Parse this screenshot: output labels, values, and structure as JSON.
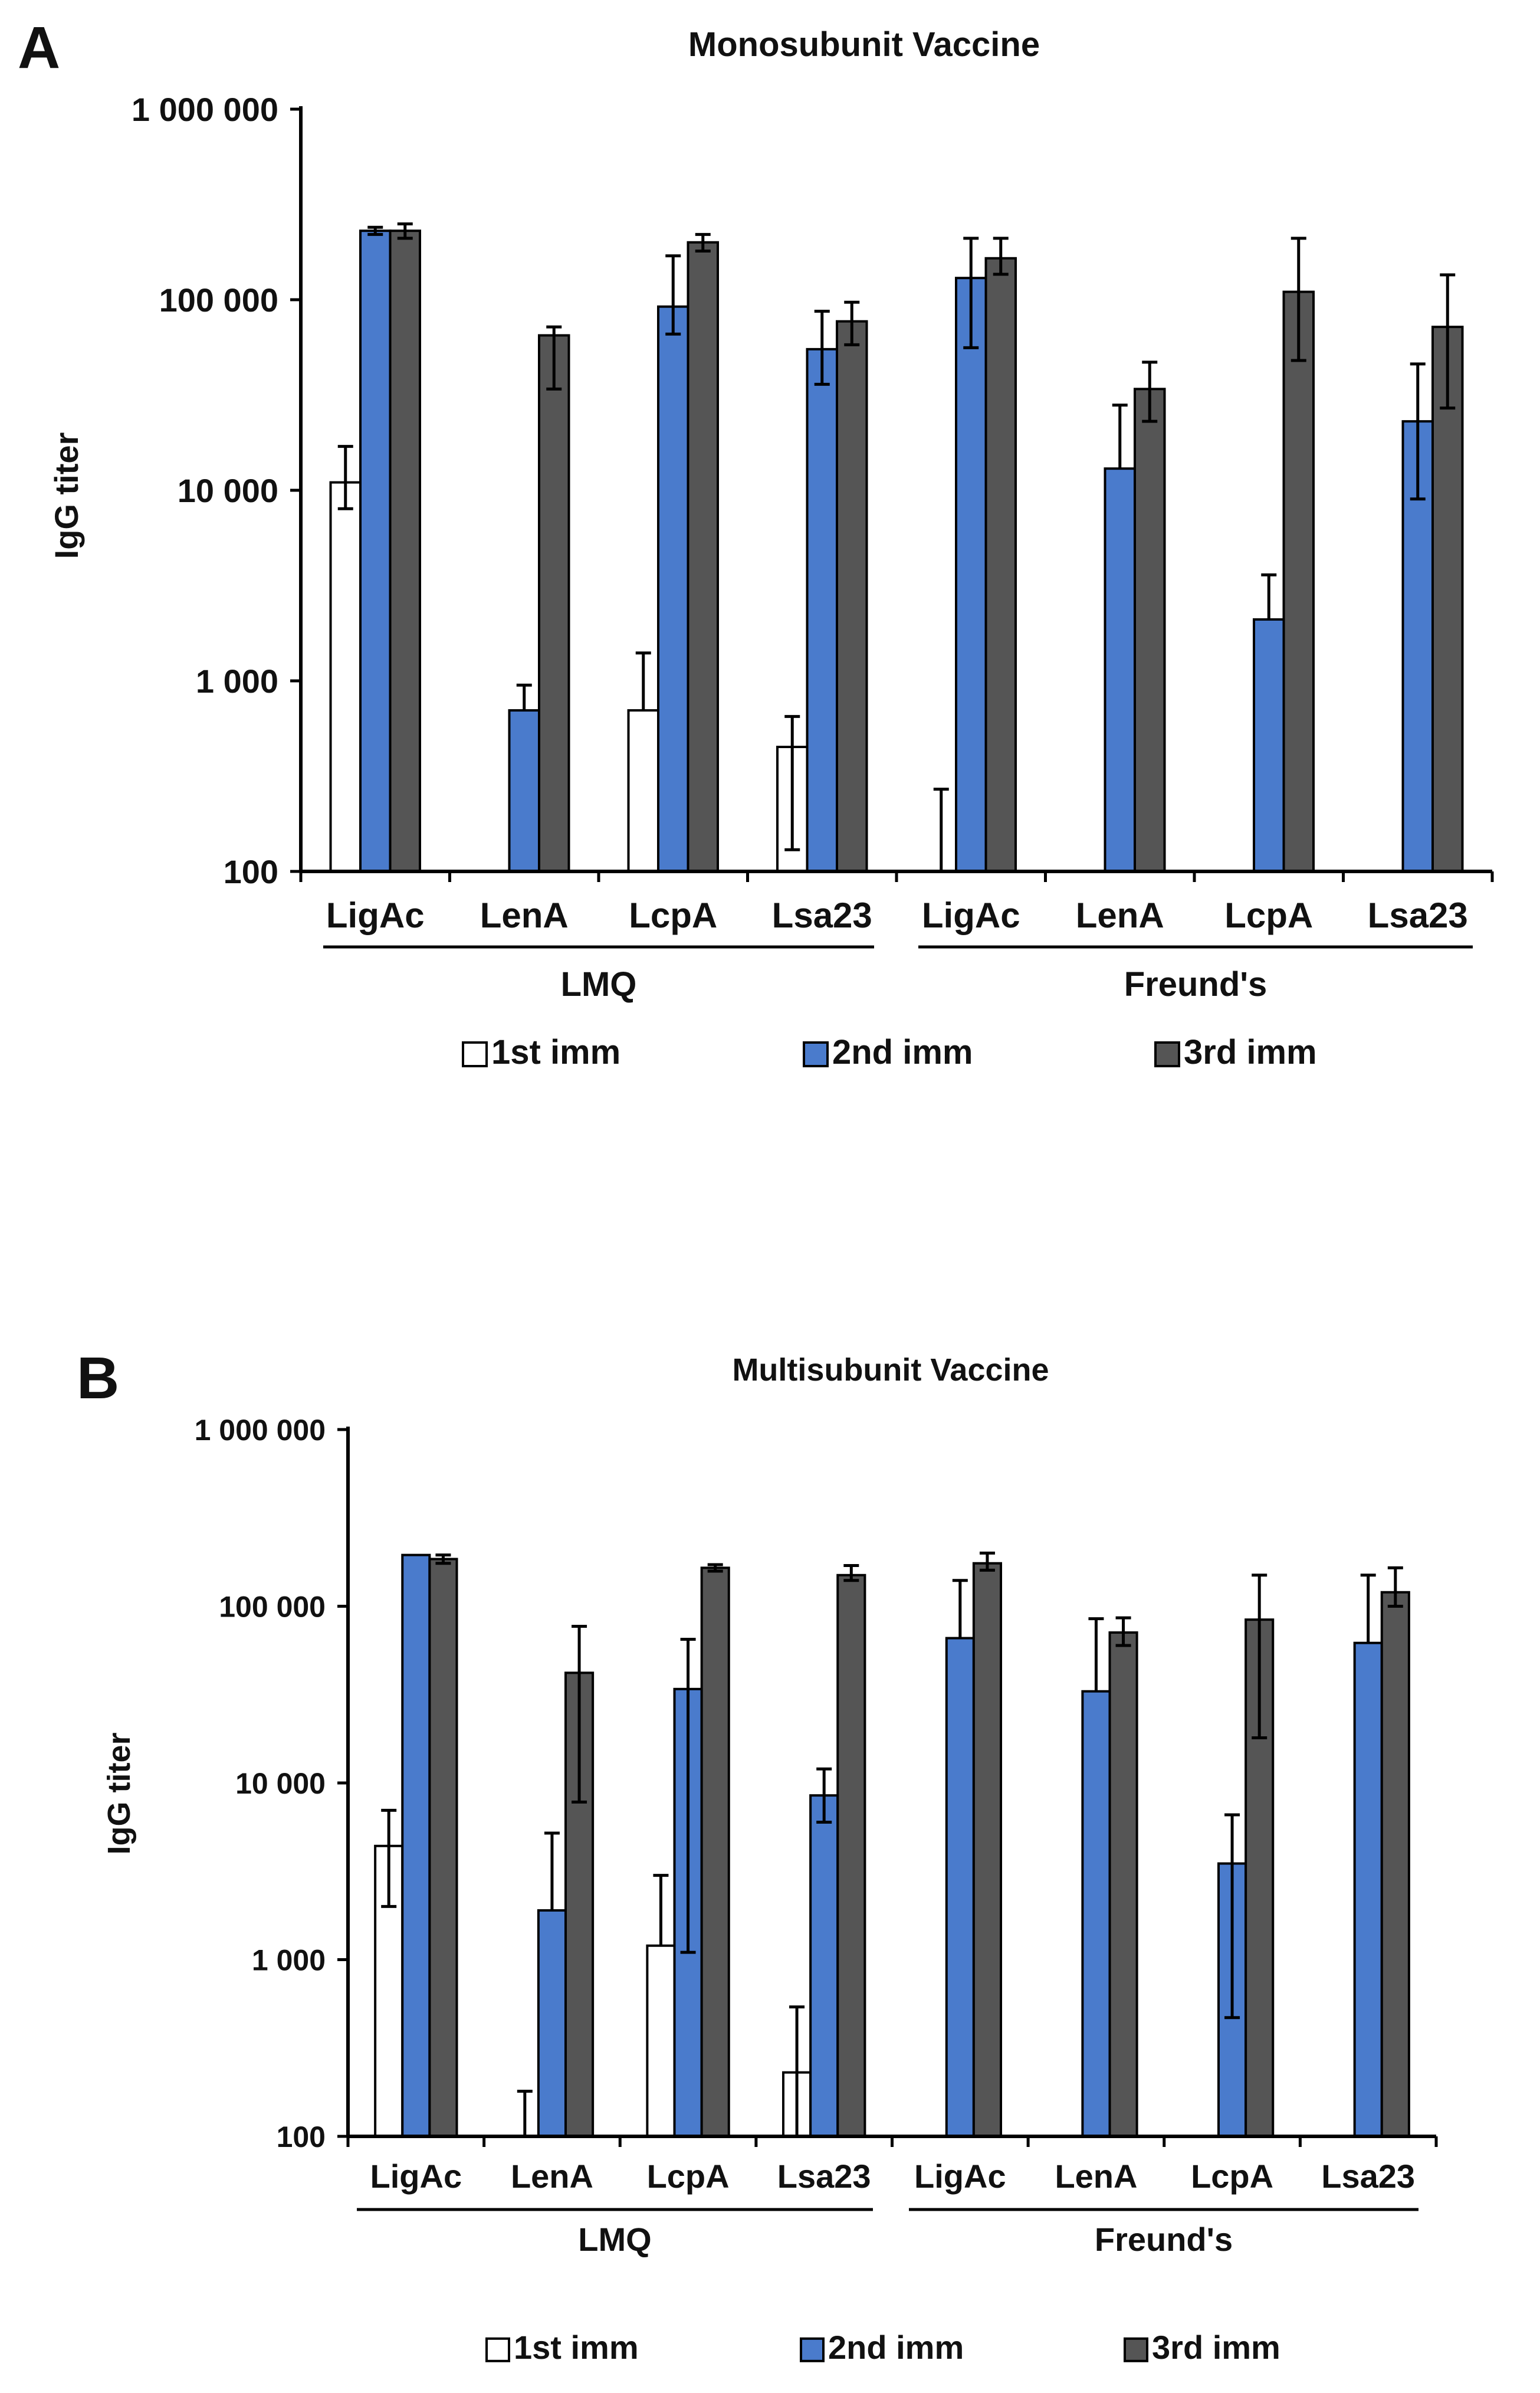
{
  "colors": {
    "first_imm": "#ffffff",
    "second_imm": "#4a7bcc",
    "third_imm": "#555555",
    "bar_stroke": "#000000",
    "text": "#111111"
  },
  "chart_data": [
    {
      "panel": "A",
      "type": "bar",
      "title": "Monosubunit Vaccine",
      "ylabel": "IgG titer",
      "xlabel": "",
      "yscale": "log",
      "ylim": [
        100,
        1000000
      ],
      "yticks": [
        100,
        1000,
        10000,
        100000,
        1000000
      ],
      "ytick_labels": [
        "100",
        "1 000",
        "10 000",
        "100 000",
        "1 000 000"
      ],
      "categories": [
        "LigAc",
        "LenA",
        "LcpA",
        "Lsa23",
        "LigAc",
        "LenA",
        "LcpA",
        "Lsa23"
      ],
      "groups": [
        {
          "label": "LMQ",
          "from": 0,
          "to": 3
        },
        {
          "label": "Freund's",
          "from": 4,
          "to": 7
        }
      ],
      "legend": [
        "1st imm",
        "2nd imm",
        "3rd imm"
      ],
      "series": [
        {
          "name": "1st imm",
          "values": [
            11000,
            null,
            700,
            450,
            100,
            null,
            null,
            null
          ],
          "err_low": [
            8000,
            null,
            null,
            130,
            null,
            null,
            null,
            null
          ],
          "err_high": [
            17000,
            null,
            1400,
            650,
            270,
            null,
            null,
            null
          ]
        },
        {
          "name": "2nd imm",
          "values": [
            230000,
            700,
            92000,
            55000,
            130000,
            13000,
            2100,
            23000
          ],
          "err_low": [
            220000,
            null,
            66000,
            36000,
            56000,
            null,
            null,
            9000
          ],
          "err_high": [
            240000,
            950,
            170000,
            87000,
            210000,
            28000,
            3600,
            46000
          ]
        },
        {
          "name": "3rd imm",
          "values": [
            230000,
            65000,
            200000,
            77000,
            165000,
            34000,
            110000,
            72000
          ],
          "err_low": [
            210000,
            34000,
            180000,
            58000,
            136000,
            23000,
            48000,
            27000
          ],
          "err_high": [
            250000,
            72000,
            220000,
            97000,
            210000,
            47000,
            210000,
            135000
          ]
        }
      ]
    },
    {
      "panel": "B",
      "type": "bar",
      "title": "Multisubunit Vaccine",
      "ylabel": "IgG titer",
      "xlabel": "",
      "yscale": "log",
      "ylim": [
        100,
        1000000
      ],
      "yticks": [
        100,
        1000,
        10000,
        100000,
        1000000
      ],
      "ytick_labels": [
        "100",
        "1 000",
        "10 000",
        "100 000",
        "1 000 000"
      ],
      "categories": [
        "LigAc",
        "LenA",
        "LcpA",
        "Lsa23",
        "LigAc",
        "LenA",
        "LcpA",
        "Lsa23"
      ],
      "groups": [
        {
          "label": "LMQ",
          "from": 0,
          "to": 3
        },
        {
          "label": "Freund's",
          "from": 4,
          "to": 7
        }
      ],
      "legend": [
        "1st imm",
        "2nd imm",
        "3rd imm"
      ],
      "series": [
        {
          "name": "1st imm",
          "values": [
            4400,
            100,
            1200,
            230,
            null,
            null,
            null,
            null
          ],
          "err_low": [
            2000,
            null,
            null,
            100,
            null,
            null,
            null,
            null
          ],
          "err_high": [
            7000,
            180,
            3000,
            540,
            null,
            null,
            null,
            null
          ]
        },
        {
          "name": "2nd imm",
          "values": [
            195000,
            1900,
            34000,
            8500,
            66000,
            33000,
            3500,
            62000
          ],
          "err_low": [
            null,
            null,
            1100,
            6000,
            null,
            null,
            470,
            null
          ],
          "err_high": [
            null,
            5200,
            65000,
            12000,
            140000,
            85000,
            6600,
            150000
          ]
        },
        {
          "name": "3rd imm",
          "values": [
            185000,
            42000,
            165000,
            150000,
            175000,
            71000,
            84000,
            120000
          ],
          "err_low": [
            175000,
            7800,
            158000,
            140000,
            160000,
            60000,
            18000,
            100000
          ],
          "err_high": [
            195000,
            77000,
            172000,
            170000,
            200000,
            86000,
            150000,
            165000
          ]
        }
      ]
    }
  ]
}
